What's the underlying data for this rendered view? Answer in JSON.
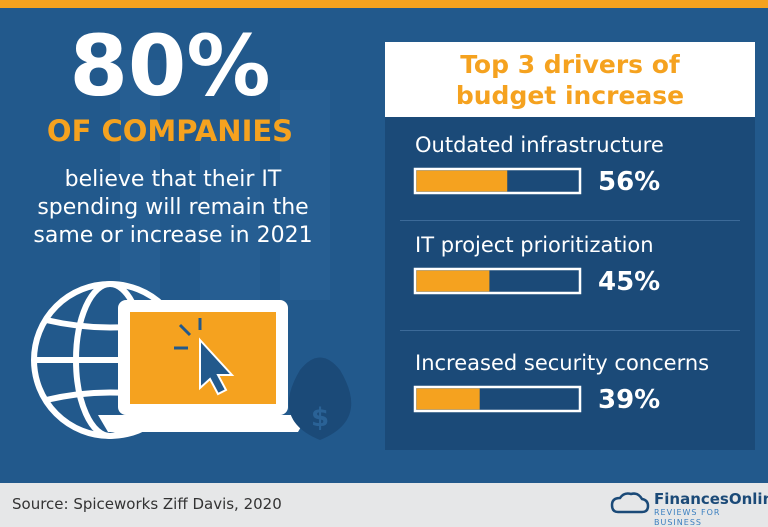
{
  "headline": {
    "value": "80%",
    "subtitle": "OF COMPANIES",
    "text": "believe that their IT spending will remain the same or increase in 2021"
  },
  "panel": {
    "title": "Top 3 drivers of budget increase",
    "items": [
      {
        "label": "Outdated infrastructure",
        "value": 56,
        "value_label": "56%"
      },
      {
        "label": "IT project prioritization",
        "value": 45,
        "value_label": "45%"
      },
      {
        "label": "Increased security concerns",
        "value": 39,
        "value_label": "39%"
      }
    ]
  },
  "footer": {
    "source": "Source: Spiceworks Ziff Davis, 2020",
    "logo": "FinancesOnline",
    "tagline": "REVIEWS FOR BUSINESS"
  }
}
